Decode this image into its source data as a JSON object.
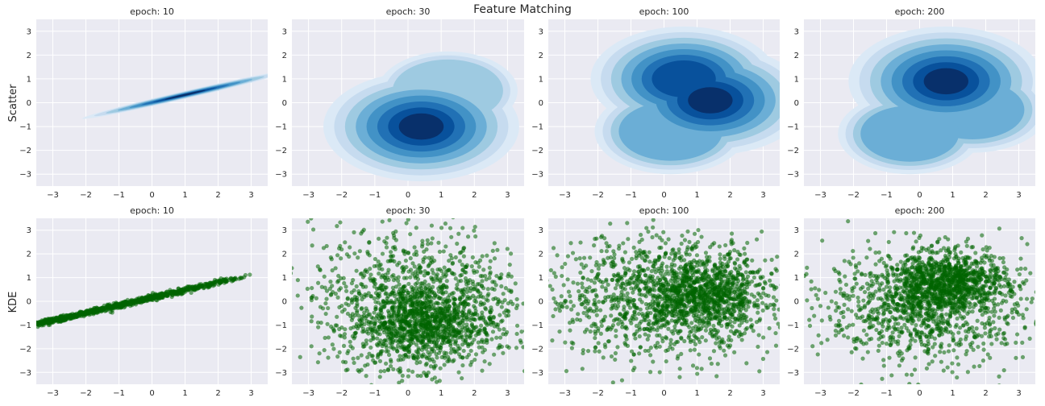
{
  "figure": {
    "title": "Feature Matching"
  },
  "rows": [
    {
      "label": "Scatter",
      "kind": "kde"
    },
    {
      "label": "KDE",
      "kind": "scatter"
    }
  ],
  "panel_titles": [
    "epoch:  10",
    "epoch:  30",
    "epoch:  100",
    "epoch:  200"
  ],
  "axes": {
    "xlim": [
      -3.5,
      3.5
    ],
    "ylim": [
      -3.5,
      3.5
    ],
    "xticks": [
      -3,
      -2,
      -1,
      0,
      1,
      2,
      3
    ],
    "yticks": [
      -3,
      -2,
      -1,
      0,
      1,
      2,
      3
    ],
    "grid": true,
    "background": "#eaeaf2"
  },
  "colors": {
    "kde": [
      "#dbe9f6",
      "#c6dbef",
      "#9ecae1",
      "#6baed6",
      "#4292c6",
      "#2171b5",
      "#08519c",
      "#08306b"
    ],
    "scatter": "#006400"
  },
  "chart_data": [
    {
      "type": "heatmap",
      "row": "Scatter",
      "title": "epoch:  10",
      "description": "thin diagonal density ridge",
      "components": [
        {
          "center": [
            1.0,
            0.33
          ],
          "spread_along": 0.9,
          "spread_across": 0.04,
          "slope": 0.32
        }
      ],
      "xlim": [
        -3.5,
        3.5
      ],
      "ylim": [
        -3.5,
        3.5
      ]
    },
    {
      "type": "heatmap",
      "row": "Scatter",
      "title": "epoch:  30",
      "components": [
        {
          "center": [
            0.4,
            -1.0
          ],
          "weight": 1.0
        },
        {
          "center": [
            1.2,
            0.5
          ],
          "weight": 0.35
        }
      ],
      "xlim": [
        -3.5,
        3.5
      ],
      "ylim": [
        -3.5,
        3.5
      ]
    },
    {
      "type": "heatmap",
      "row": "Scatter",
      "title": "epoch:  100",
      "components": [
        {
          "center": [
            1.4,
            0.1
          ],
          "weight": 1.0
        },
        {
          "center": [
            0.6,
            1.0
          ],
          "weight": 0.9
        },
        {
          "center": [
            0.2,
            -1.2
          ],
          "weight": 0.5
        }
      ],
      "xlim": [
        -3.5,
        3.5
      ],
      "ylim": [
        -3.5,
        3.5
      ]
    },
    {
      "type": "heatmap",
      "row": "Scatter",
      "title": "epoch:  200",
      "components": [
        {
          "center": [
            0.8,
            0.9
          ],
          "weight": 1.0
        },
        {
          "center": [
            1.6,
            -0.3
          ],
          "weight": 0.5
        },
        {
          "center": [
            -0.3,
            -1.3
          ],
          "weight": 0.4
        }
      ],
      "xlim": [
        -3.5,
        3.5
      ],
      "ylim": [
        -3.5,
        3.5
      ]
    },
    {
      "type": "scatter",
      "row": "KDE",
      "title": "epoch:  10",
      "components": [
        {
          "center": [
            0.0,
            0.15
          ],
          "slope": 0.32,
          "x_range": [
            -3.5,
            3.1
          ],
          "spread_across": 0.06
        }
      ],
      "xlim": [
        -3.5,
        3.5
      ],
      "ylim": [
        -3.5,
        3.5
      ]
    },
    {
      "type": "scatter",
      "row": "KDE",
      "title": "epoch:  30",
      "components": [
        {
          "center": [
            0.4,
            -1.0
          ],
          "sd": [
            1.1,
            0.9
          ],
          "weight": 0.6
        },
        {
          "center": [
            0.3,
            0.4
          ],
          "sd": [
            1.6,
            1.4
          ],
          "weight": 0.4
        }
      ],
      "xlim": [
        -3.5,
        3.5
      ],
      "ylim": [
        -3.5,
        3.5
      ]
    },
    {
      "type": "scatter",
      "row": "KDE",
      "title": "epoch:  100",
      "components": [
        {
          "center": [
            1.3,
            0.2
          ],
          "sd": [
            0.9,
            0.8
          ],
          "weight": 0.45
        },
        {
          "center": [
            -0.2,
            0.2
          ],
          "sd": [
            1.7,
            1.3
          ],
          "weight": 0.55
        }
      ],
      "xlim": [
        -3.5,
        3.5
      ],
      "ylim": [
        -3.5,
        3.5
      ]
    },
    {
      "type": "scatter",
      "row": "KDE",
      "title": "epoch:  200",
      "components": [
        {
          "center": [
            0.8,
            0.8
          ],
          "sd": [
            0.9,
            0.6
          ],
          "weight": 0.45
        },
        {
          "center": [
            0.2,
            -0.2
          ],
          "sd": [
            1.5,
            1.2
          ],
          "weight": 0.55
        }
      ],
      "xlim": [
        -3.5,
        3.5
      ],
      "ylim": [
        -3.5,
        3.5
      ]
    }
  ]
}
